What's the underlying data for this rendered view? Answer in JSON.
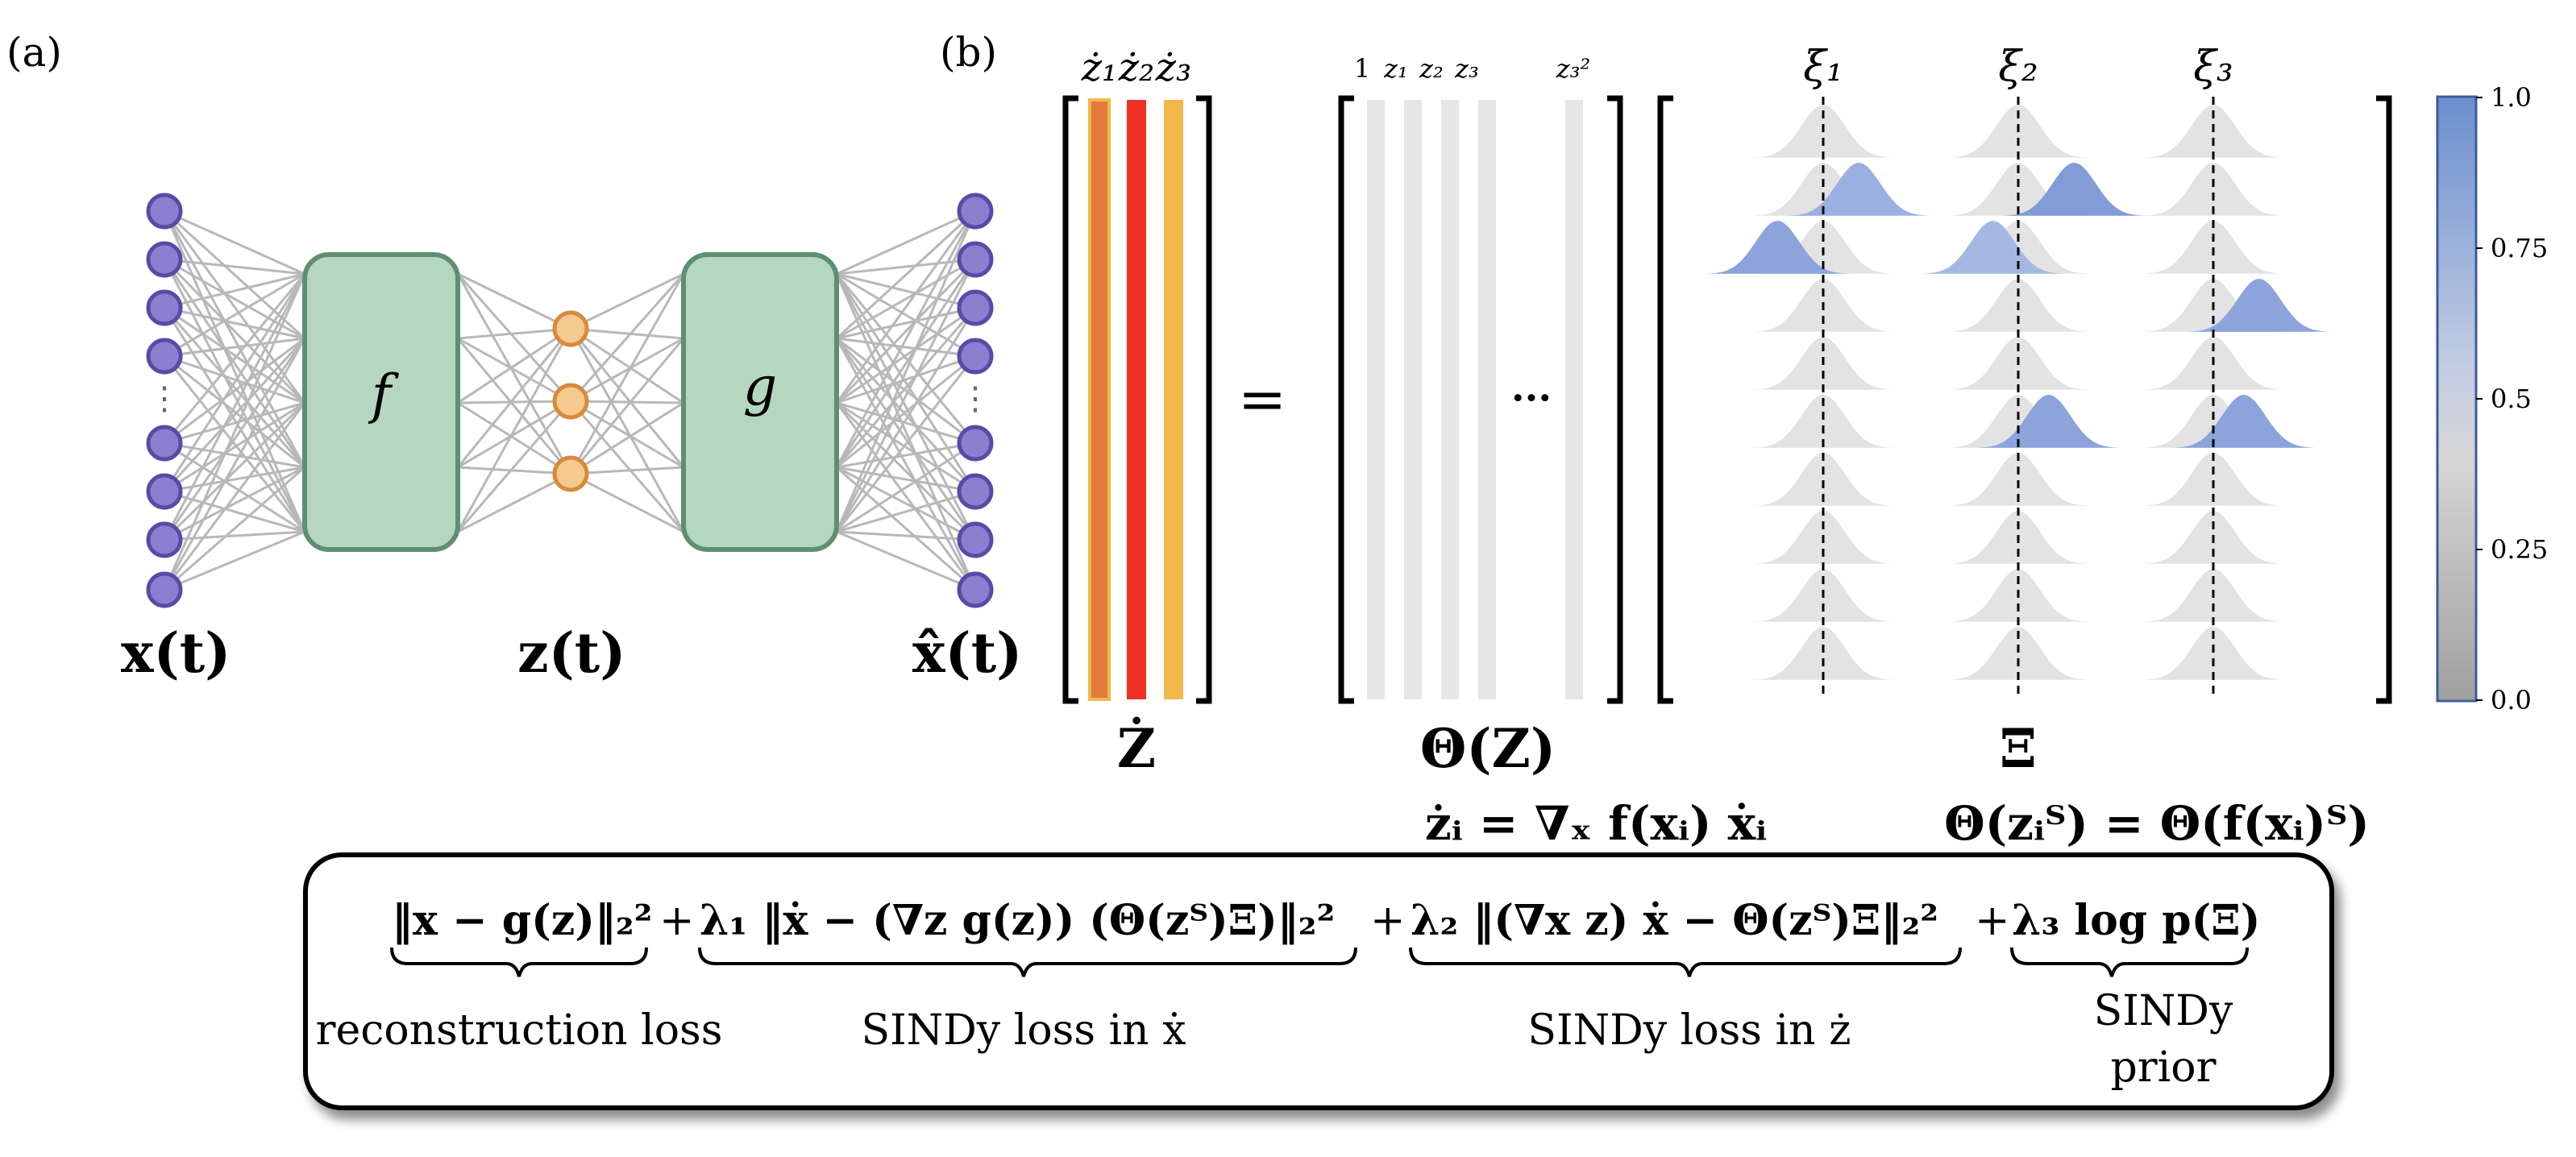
{
  "panels": {
    "a_label": "(a)",
    "b_label": "(b)"
  },
  "network": {
    "encoder_label": "f",
    "decoder_label": "g",
    "input_label": "x(t)",
    "latent_label": "z(t)",
    "output_label": "x̂(t)",
    "ellipsis": "⋮",
    "colors": {
      "io_node": "#8c7fcf",
      "latent_node": "#f5c98f",
      "box_fill": "#b5d7c0",
      "box_stroke": "#5f8f73"
    }
  },
  "equation": {
    "zdot_headers": [
      "ż₁",
      "ż₂",
      "ż₃"
    ],
    "zdot_colors": [
      "#e07b39",
      "#ee3124",
      "#f2b84b"
    ],
    "theta_headers": [
      "1",
      "z₁",
      "z₂",
      "z₃",
      "z₃²"
    ],
    "theta_ellipsis": "···",
    "equals": "=",
    "xi_headers": [
      "ξ₁",
      "ξ₂",
      "ξ₃"
    ],
    "zdot_label": "Ż",
    "theta_label": "Θ(Z)",
    "xi_label": "Ξ",
    "zdot_formula": "żᵢ = ∇ₓ f(xᵢ) ẋᵢ",
    "theta_formula": "Θ(zᵢᵀ) = Θ(f(xᵢ)ᵀ)"
  },
  "colorbar": {
    "ticks": [
      "1.0",
      "0.75",
      "0.5",
      "0.25",
      "0.0"
    ],
    "top_color": "#6b8fcf",
    "bottom_color": "#a0a0a0"
  },
  "loss": {
    "term1": "‖x − g(z)‖₂²",
    "plus1": "+",
    "term2": "λ₁ ‖ẋ − (∇z g(z)) (Θ(zᵀ)Ξ)‖₂²",
    "plus2": "+",
    "term3": "λ₂ ‖(∇x z) ẋ − Θ(zᵀ)Ξ‖₂²",
    "plus3": "+",
    "term4": "λ₃ log p(Ξ)",
    "label1": "reconstruction loss",
    "label2": "SINDy loss in ẋ",
    "label3": "SINDy loss in ż",
    "label4_line1": "SINDy",
    "label4_line2": "prior"
  },
  "posterior_peaks": [
    {
      "col": 0,
      "row": 2,
      "offset": -0.45,
      "weight": 0.7
    },
    {
      "col": 0,
      "row": 1,
      "offset": 0.35,
      "weight": 0.55
    },
    {
      "col": 1,
      "row": 1,
      "offset": 0.55,
      "weight": 0.8
    },
    {
      "col": 1,
      "row": 2,
      "offset": -0.25,
      "weight": 0.45
    },
    {
      "col": 1,
      "row": 5,
      "offset": 0.3,
      "weight": 0.7
    },
    {
      "col": 2,
      "row": 3,
      "offset": 0.45,
      "weight": 0.7
    },
    {
      "col": 2,
      "row": 5,
      "offset": 0.3,
      "weight": 0.7
    }
  ]
}
